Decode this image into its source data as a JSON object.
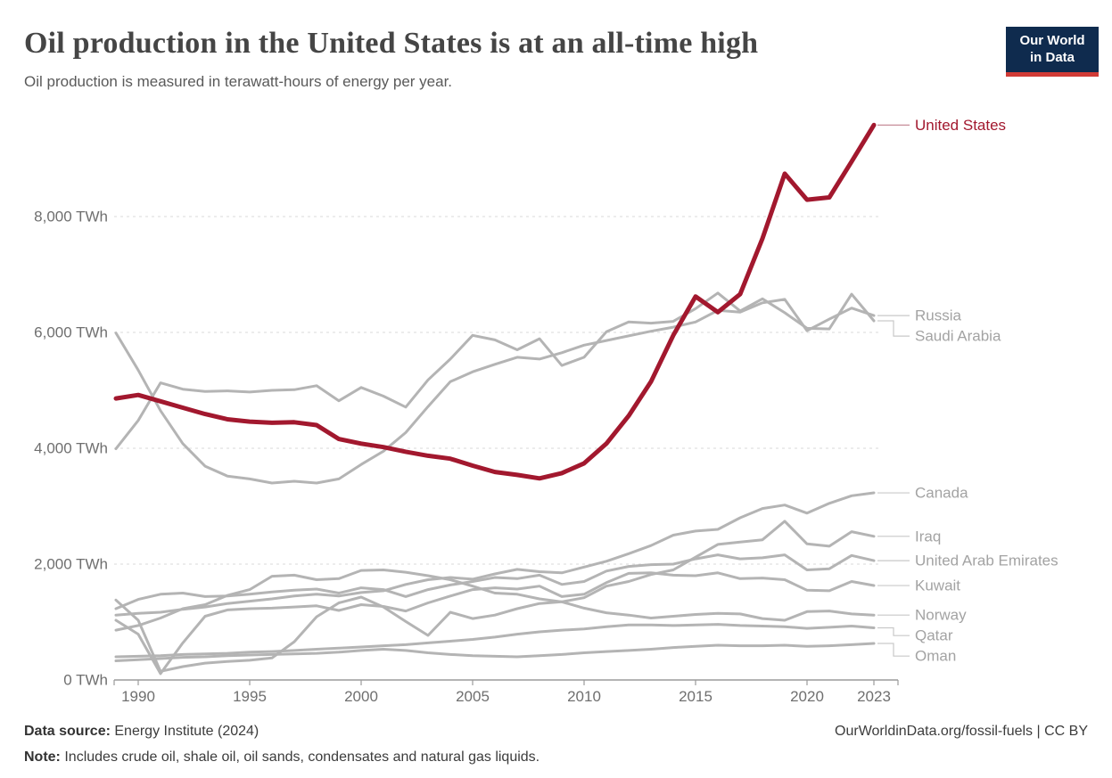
{
  "header": {
    "title": "Oil production in the United States is at an all-time high",
    "subtitle": "Oil production is measured in terawatt-hours of energy per year."
  },
  "logo": {
    "line1": "Our World",
    "line2": "in Data",
    "bg": "#0f2b4e",
    "accent": "#d13b36"
  },
  "chart_data": {
    "type": "line",
    "unit": "TWh",
    "title": "Oil production in the United States is at an all-time high",
    "xlabel": "",
    "ylabel": "TWh",
    "ylim": [
      0,
      9800
    ],
    "grid": "horizontal-dashed",
    "legend_position": "right-edge-labels",
    "x": [
      1989,
      1990,
      1991,
      1992,
      1993,
      1994,
      1995,
      1996,
      1997,
      1998,
      1999,
      2000,
      2001,
      2002,
      2003,
      2004,
      2005,
      2006,
      2007,
      2008,
      2009,
      2010,
      2011,
      2012,
      2013,
      2014,
      2015,
      2016,
      2017,
      2018,
      2019,
      2020,
      2021,
      2022,
      2023
    ],
    "xticks": [
      1990,
      1995,
      2000,
      2005,
      2010,
      2015,
      2020,
      2023
    ],
    "yticks": [
      0,
      2000,
      4000,
      6000,
      8000
    ],
    "ytick_labels": [
      "0 TWh",
      "2,000 TWh",
      "4,000 TWh",
      "6,000 TWh",
      "8,000 TWh"
    ],
    "series": [
      {
        "name": "United States",
        "color": "#a2182e",
        "width": 5,
        "values": [
          4860,
          4920,
          4810,
          4700,
          4590,
          4500,
          4460,
          4440,
          4450,
          4400,
          4160,
          4080,
          4020,
          3940,
          3870,
          3820,
          3700,
          3590,
          3540,
          3480,
          3570,
          3740,
          4080,
          4560,
          5150,
          5950,
          6620,
          6350,
          6660,
          7620,
          8740,
          8290,
          8330,
          8950,
          9580
        ]
      },
      {
        "name": "Russia",
        "color": "#b4b4b4",
        "width": 3,
        "values": [
          5990,
          5350,
          4650,
          4080,
          3690,
          3520,
          3470,
          3400,
          3430,
          3400,
          3470,
          3720,
          3950,
          4270,
          4720,
          5150,
          5320,
          5450,
          5570,
          5540,
          5650,
          5780,
          5860,
          5940,
          6020,
          6090,
          6180,
          6380,
          6350,
          6510,
          6570,
          6030,
          6230,
          6420,
          6290
        ]
      },
      {
        "name": "Saudi Arabia",
        "color": "#b4b4b4",
        "width": 3,
        "values": [
          3990,
          4480,
          5130,
          5020,
          4980,
          4990,
          4970,
          5000,
          5010,
          5080,
          4820,
          5050,
          4900,
          4710,
          5180,
          5540,
          5950,
          5870,
          5700,
          5890,
          5430,
          5570,
          6010,
          6180,
          6160,
          6190,
          6410,
          6680,
          6370,
          6580,
          6340,
          6070,
          6060,
          6660,
          6200
        ]
      },
      {
        "name": "Canada",
        "color": "#b4b4b4",
        "width": 3,
        "values": [
          1120,
          1150,
          1170,
          1220,
          1260,
          1320,
          1360,
          1400,
          1450,
          1480,
          1450,
          1510,
          1540,
          1650,
          1730,
          1770,
          1740,
          1830,
          1910,
          1870,
          1850,
          1950,
          2050,
          2180,
          2320,
          2500,
          2570,
          2600,
          2800,
          2960,
          3020,
          2880,
          3050,
          3180,
          3230
        ]
      },
      {
        "name": "Iraq",
        "color": "#b4b4b4",
        "width": 3,
        "values": [
          1380,
          1030,
          150,
          230,
          290,
          320,
          340,
          380,
          660,
          1090,
          1330,
          1430,
          1260,
          1010,
          770,
          1170,
          1060,
          1120,
          1230,
          1320,
          1350,
          1420,
          1620,
          1700,
          1820,
          1900,
          2120,
          2340,
          2380,
          2420,
          2740,
          2350,
          2310,
          2560,
          2480
        ]
      },
      {
        "name": "United Arab Emirates",
        "color": "#b4b4b4",
        "width": 3,
        "values": [
          1230,
          1390,
          1480,
          1500,
          1440,
          1450,
          1480,
          1520,
          1550,
          1570,
          1500,
          1590,
          1560,
          1440,
          1560,
          1640,
          1700,
          1770,
          1750,
          1810,
          1650,
          1700,
          1880,
          1960,
          1990,
          2000,
          2090,
          2160,
          2090,
          2110,
          2160,
          1900,
          1920,
          2150,
          2060
        ]
      },
      {
        "name": "Kuwait",
        "color": "#b4b4b4",
        "width": 3,
        "values": [
          1030,
          790,
          110,
          640,
          1100,
          1210,
          1230,
          1240,
          1260,
          1280,
          1200,
          1300,
          1270,
          1190,
          1330,
          1450,
          1560,
          1590,
          1570,
          1620,
          1440,
          1480,
          1680,
          1840,
          1850,
          1810,
          1800,
          1850,
          1750,
          1760,
          1730,
          1550,
          1540,
          1700,
          1630
        ]
      },
      {
        "name": "Norway",
        "color": "#b4b4b4",
        "width": 3,
        "values": [
          860,
          940,
          1070,
          1230,
          1300,
          1460,
          1560,
          1790,
          1810,
          1730,
          1750,
          1890,
          1900,
          1860,
          1800,
          1730,
          1620,
          1500,
          1480,
          1400,
          1350,
          1240,
          1160,
          1120,
          1070,
          1100,
          1130,
          1150,
          1140,
          1060,
          1030,
          1180,
          1190,
          1140,
          1120
        ]
      },
      {
        "name": "Qatar",
        "color": "#b4b4b4",
        "width": 3,
        "values": [
          400,
          410,
          420,
          440,
          450,
          460,
          480,
          490,
          510,
          530,
          550,
          570,
          590,
          610,
          640,
          670,
          700,
          740,
          790,
          830,
          860,
          880,
          920,
          950,
          950,
          940,
          950,
          960,
          940,
          930,
          920,
          890,
          910,
          930,
          900
        ]
      },
      {
        "name": "Oman",
        "color": "#b4b4b4",
        "width": 3,
        "values": [
          330,
          350,
          370,
          390,
          400,
          420,
          430,
          440,
          450,
          460,
          480,
          510,
          530,
          510,
          470,
          440,
          420,
          410,
          400,
          420,
          440,
          470,
          490,
          510,
          530,
          560,
          580,
          600,
          590,
          590,
          600,
          580,
          590,
          610,
          630
        ]
      }
    ],
    "label_gray": "#a3a3a3",
    "leader_gray": "#c9c9c9",
    "leader_red": "#c1808d",
    "grid_color": "#d9d9d9",
    "axis_color": "#9b9b9b",
    "tick_text_color": "#6f6f6f"
  },
  "footer": {
    "source_label": "Data source:",
    "source": "Energy Institute (2024)",
    "credit": "OurWorldinData.org/fossil-fuels | CC BY",
    "note_label": "Note:",
    "note": "Includes crude oil, shale oil, oil sands, condensates and natural gas liquids."
  }
}
